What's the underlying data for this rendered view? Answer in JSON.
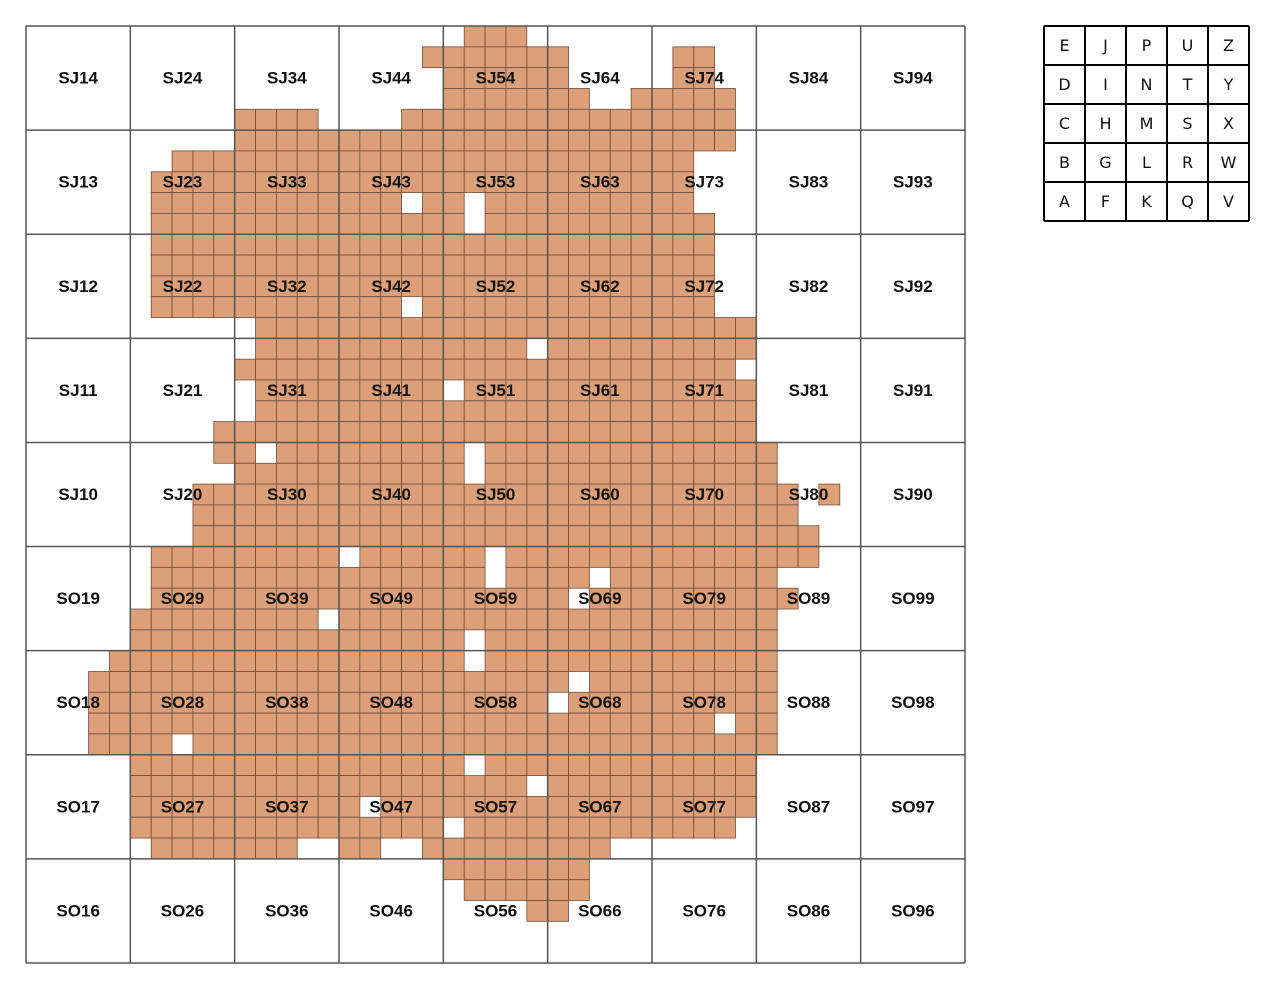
{
  "grid": {
    "rows": [
      [
        "SJ14",
        "SJ24",
        "SJ34",
        "SJ44",
        "SJ54",
        "SJ64",
        "SJ74",
        "SJ84",
        "SJ94"
      ],
      [
        "SJ13",
        "SJ23",
        "SJ33",
        "SJ43",
        "SJ53",
        "SJ63",
        "SJ73",
        "SJ83",
        "SJ93"
      ],
      [
        "SJ12",
        "SJ22",
        "SJ32",
        "SJ42",
        "SJ52",
        "SJ62",
        "SJ72",
        "SJ82",
        "SJ92"
      ],
      [
        "SJ11",
        "SJ21",
        "SJ31",
        "SJ41",
        "SJ51",
        "SJ61",
        "SJ71",
        "SJ81",
        "SJ91"
      ],
      [
        "SJ10",
        "SJ20",
        "SJ30",
        "SJ40",
        "SJ50",
        "SJ60",
        "SJ70",
        "SJ80",
        "SJ90"
      ],
      [
        "SO19",
        "SO29",
        "SO39",
        "SO49",
        "SO59",
        "SO69",
        "SO79",
        "SO89",
        "SO99"
      ],
      [
        "SO18",
        "SO28",
        "SO38",
        "SO48",
        "SO58",
        "SO68",
        "SO78",
        "SO88",
        "SO98"
      ],
      [
        "SO17",
        "SO27",
        "SO37",
        "SO47",
        "SO57",
        "SO67",
        "SO77",
        "SO87",
        "SO97"
      ],
      [
        "SO16",
        "SO26",
        "SO36",
        "SO46",
        "SO56",
        "SO66",
        "SO76",
        "SO86",
        "SO96"
      ]
    ]
  },
  "key": {
    "rows": [
      [
        "E",
        "J",
        "P",
        "U",
        "Z"
      ],
      [
        "D",
        "I",
        "N",
        "T",
        "Y"
      ],
      [
        "C",
        "H",
        "M",
        "S",
        "X"
      ],
      [
        "B",
        "G",
        "L",
        "R",
        "W"
      ],
      [
        "A",
        "F",
        "K",
        "Q",
        "V"
      ]
    ]
  }
}
